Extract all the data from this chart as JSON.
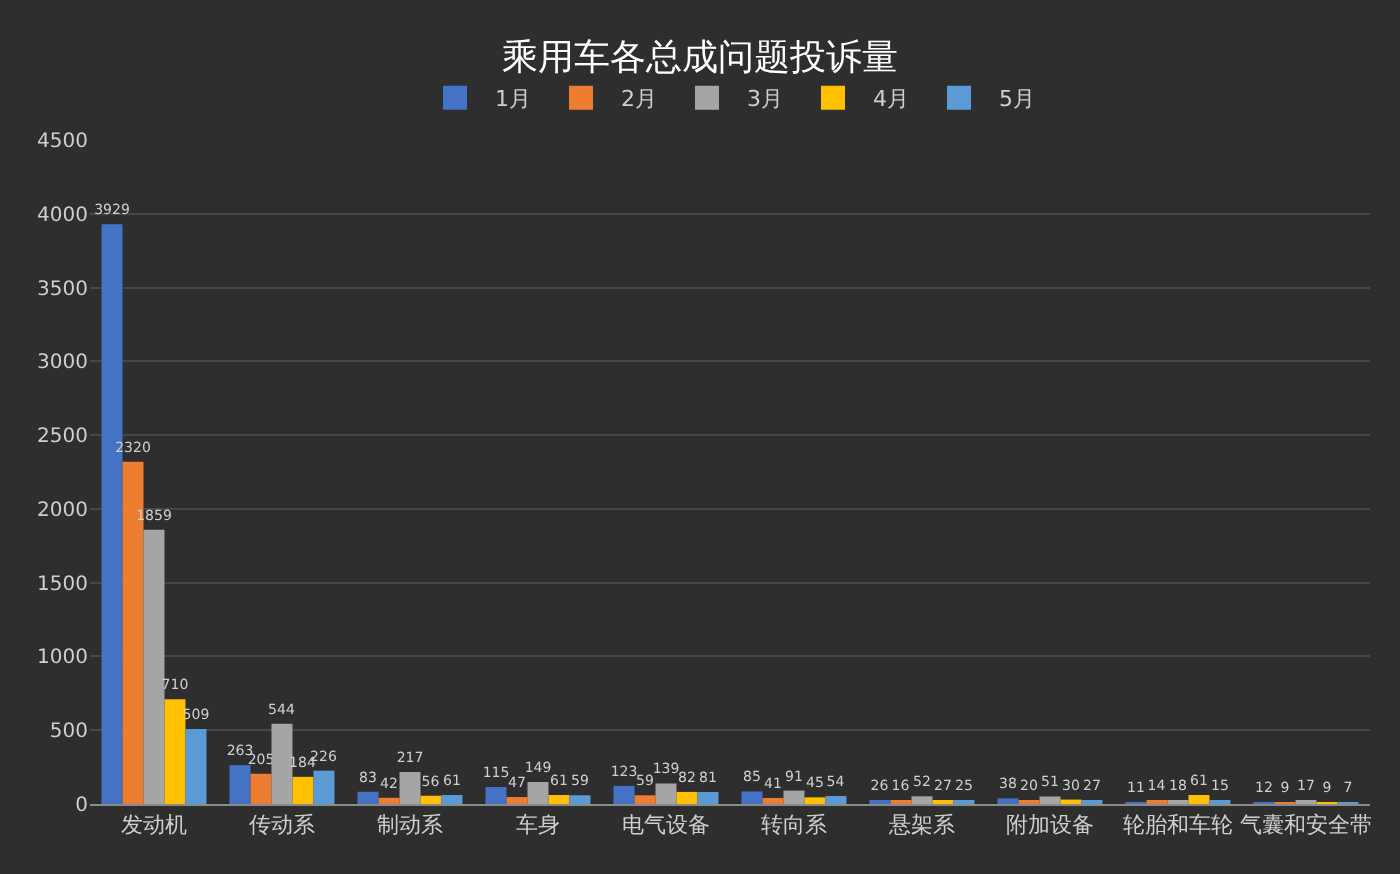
{
  "chart_data": {
    "type": "bar",
    "title": "乘用车各总成问题投诉量",
    "categories": [
      "发动机",
      "传动系",
      "制动系",
      "车身",
      "电气设备",
      "转向系",
      "悬架系",
      "附加设备",
      "轮胎和车轮",
      "气囊和安全带"
    ],
    "series": [
      {
        "name": "1月",
        "color": "#4472c4",
        "values": [
          3929,
          263,
          83,
          115,
          123,
          85,
          26,
          38,
          11,
          12
        ]
      },
      {
        "name": "2月",
        "color": "#ed7d31",
        "values": [
          2320,
          205,
          42,
          47,
          59,
          41,
          16,
          20,
          14,
          9
        ]
      },
      {
        "name": "3月",
        "color": "#a5a5a5",
        "values": [
          1859,
          544,
          217,
          149,
          139,
          91,
          52,
          51,
          18,
          17
        ]
      },
      {
        "name": "4月",
        "color": "#ffc000",
        "values": [
          710,
          184,
          56,
          61,
          82,
          45,
          27,
          30,
          61,
          9
        ]
      },
      {
        "name": "5月",
        "color": "#5b9bd5",
        "values": [
          509,
          226,
          61,
          59,
          81,
          54,
          25,
          27,
          15,
          7
        ]
      }
    ],
    "ylim": [
      0,
      4500
    ],
    "yticks": [
      0,
      500,
      1000,
      1500,
      2000,
      2500,
      3000,
      3500,
      4000,
      4500
    ],
    "grid": "y",
    "legend": "top",
    "data_labels": true
  }
}
